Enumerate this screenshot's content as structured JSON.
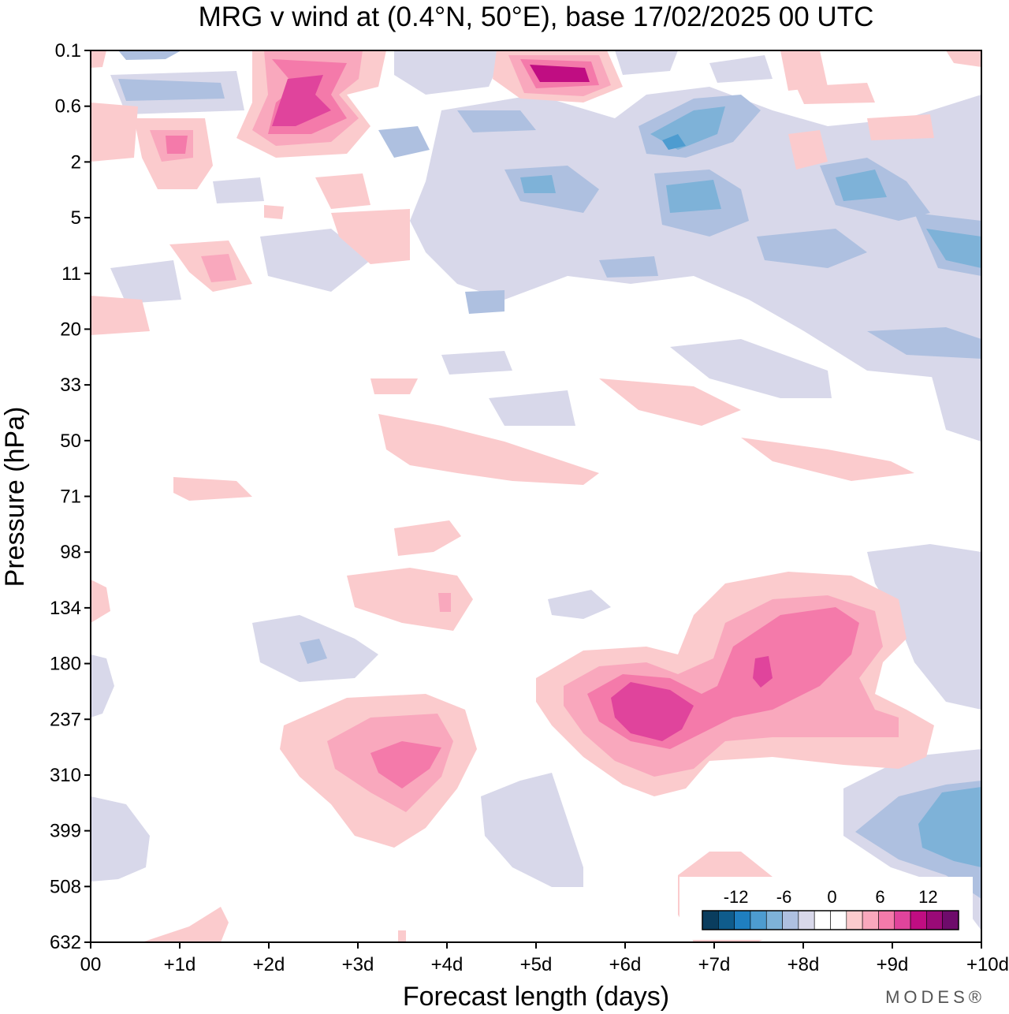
{
  "chart_data": {
    "type": "heatmap",
    "subtype": "filled-contour",
    "title": "MRG v wind at (0.4°N, 50°E),  base 17/02/2025  00 UTC",
    "xlabel": "Forecast length (days)",
    "ylabel": "Pressure (hPa)",
    "x_ticks": [
      "00",
      "+1d",
      "+2d",
      "+3d",
      "+4d",
      "+5d",
      "+6d",
      "+7d",
      "+8d",
      "+9d",
      "+10d"
    ],
    "y_ticks": [
      "0.1",
      "0.6",
      "2",
      "5",
      "11",
      "20",
      "33",
      "50",
      "71",
      "98",
      "134",
      "180",
      "237",
      "310",
      "399",
      "508",
      "632"
    ],
    "xlim": [
      0,
      10
    ],
    "ylim_hPa": [
      0.1,
      632
    ],
    "colorbar": {
      "labels": [
        "-12",
        "-6",
        "0",
        "6",
        "12"
      ],
      "colors": [
        "#0a3d5e",
        "#0f5c8c",
        "#1f7fc0",
        "#4d9cd0",
        "#7eb2d8",
        "#aec0e0",
        "#d8d8ea",
        "#ffffff",
        "#ffffff",
        "#fbcbcd",
        "#f9a8bd",
        "#f47aaa",
        "#e0449c",
        "#c00d82",
        "#9a0a77",
        "#6e0b6b"
      ]
    },
    "features": [
      {
        "x": 3.5,
        "level": 310,
        "v": 9,
        "note": "positive max"
      },
      {
        "x": 6.1,
        "level": 237,
        "v": 11
      },
      {
        "x": 7.7,
        "level": 180,
        "v": 10
      },
      {
        "x": 5.1,
        "level": 0.1,
        "v": 13
      },
      {
        "x": 2.4,
        "level": 0.6,
        "v": 11
      },
      {
        "x": 9.6,
        "level": 399,
        "v": -7
      },
      {
        "x": 6.3,
        "level": 5,
        "v": -7
      },
      {
        "x": 6.9,
        "level": 2,
        "v": -7
      }
    ]
  },
  "brand": "MODES®"
}
